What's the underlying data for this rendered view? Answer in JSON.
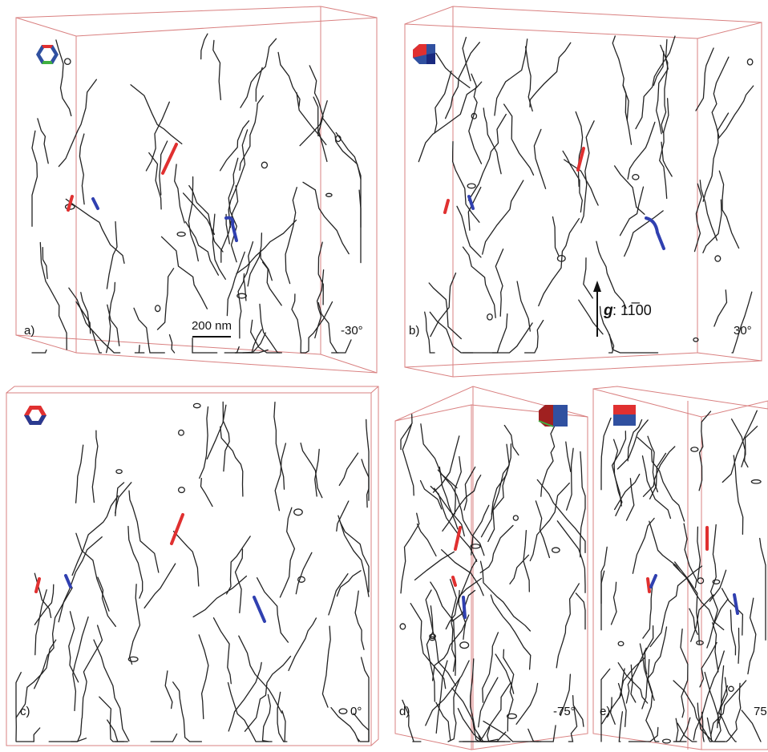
{
  "panels": [
    {
      "label": "a)",
      "angle": "-30°",
      "scale_bar": "200 nm"
    },
    {
      "label": "b)",
      "angle": "30°",
      "g_vector": {
        "symbol": "g",
        "index": ": 11̅00"
      }
    },
    {
      "label": "c)",
      "angle": "0°"
    },
    {
      "label": "d)",
      "angle": "-75°"
    },
    {
      "label": "e)",
      "angle": "75"
    }
  ]
}
